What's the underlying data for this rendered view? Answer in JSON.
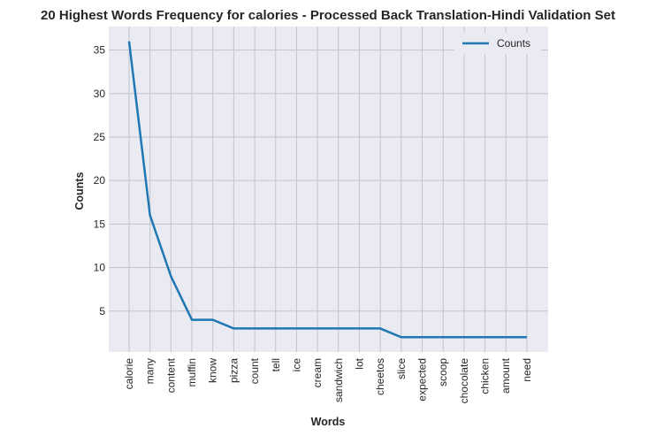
{
  "chart_data": {
    "type": "line",
    "title": "20 Highest Words Frequency for calories - Processed Back Translation-Hindi Validation Set",
    "xlabel": "Words",
    "ylabel": "Counts",
    "categories": [
      "calorie",
      "many",
      "content",
      "muffin",
      "know",
      "pizza",
      "count",
      "tell",
      "ice",
      "cream",
      "sandwich",
      "lot",
      "cheetos",
      "slice",
      "expected",
      "scoop",
      "chocolate",
      "chicken",
      "amount",
      "need"
    ],
    "series": [
      {
        "name": "Counts",
        "values": [
          36,
          16,
          9,
          4,
          4,
          3,
          3,
          3,
          3,
          3,
          3,
          3,
          3,
          2,
          2,
          2,
          2,
          2,
          2,
          2
        ]
      }
    ],
    "ylim": [
      0.3,
      37.7
    ],
    "yticks": [
      5,
      10,
      15,
      20,
      25,
      30,
      35
    ],
    "grid": true,
    "legend_position": "top-right",
    "colors": {
      "line": "#1f77b4",
      "plot_bg": "#eaeaf2",
      "grid": "#c3c3c8"
    }
  }
}
